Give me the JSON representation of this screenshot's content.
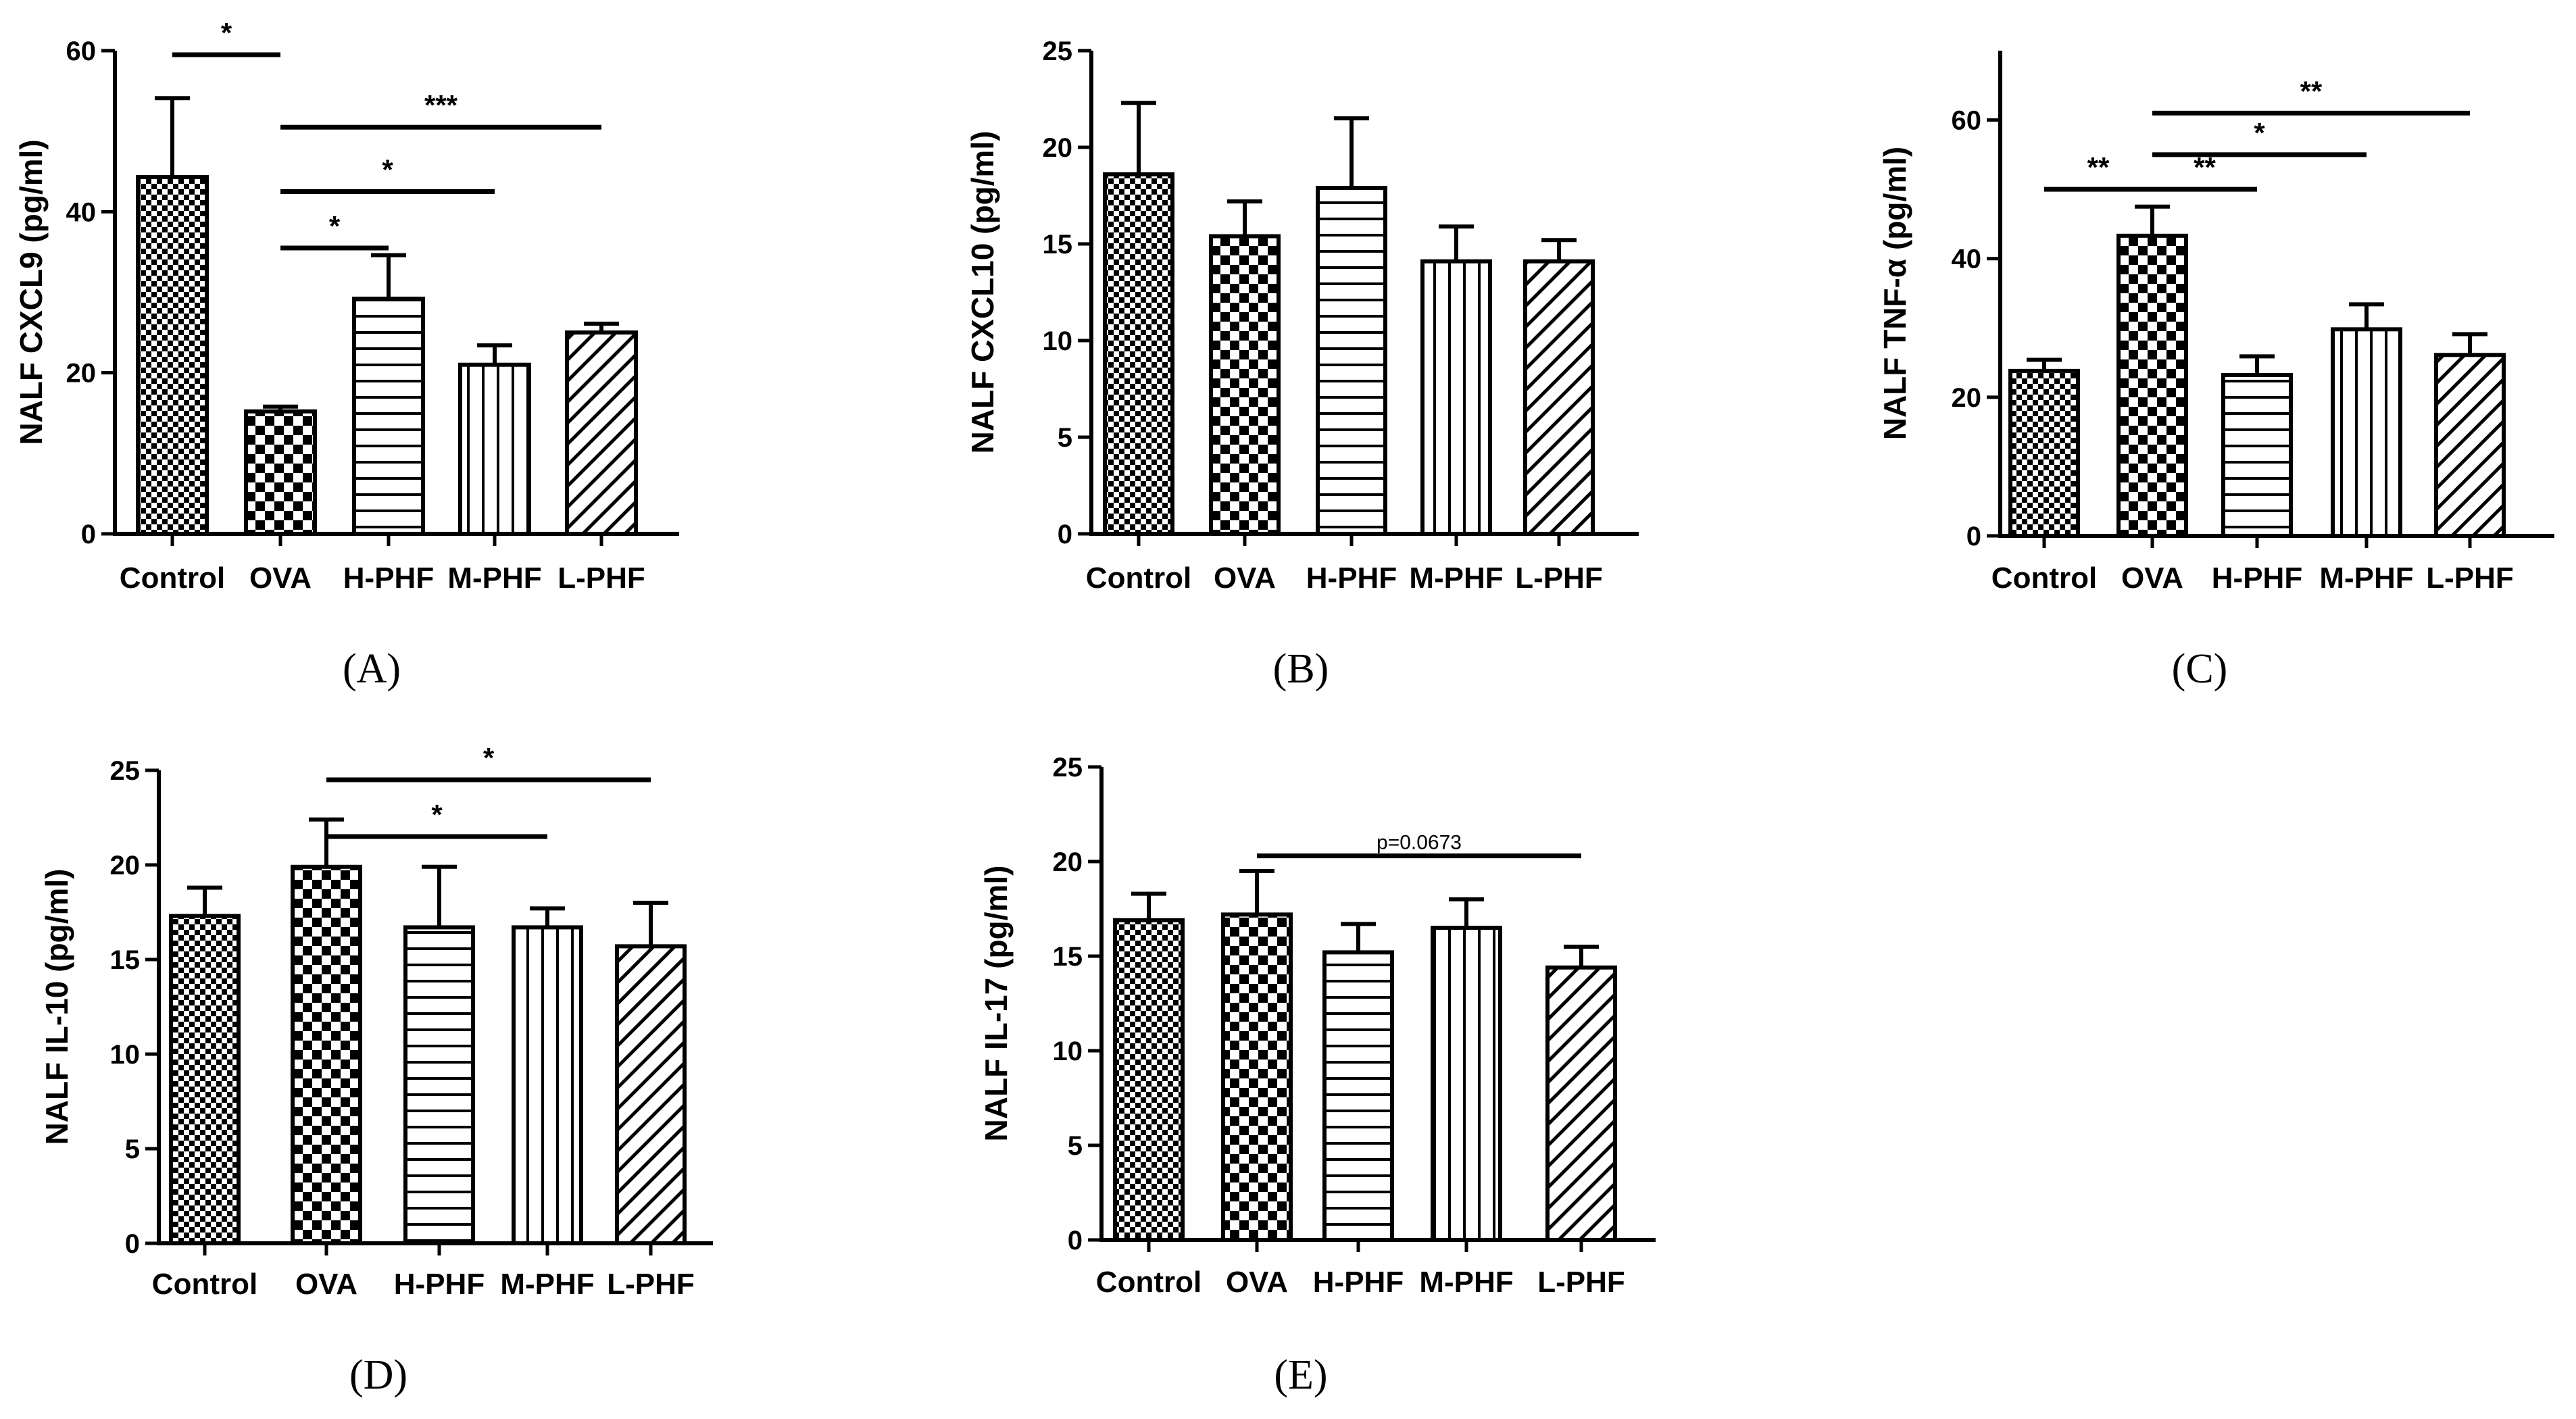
{
  "chart_data": [
    {
      "type": "bar",
      "panel_label": "(A)",
      "ylabel": "NALF CXCL9 (pg/ml)",
      "ylim": [
        0,
        60
      ],
      "yticks": [
        0,
        20,
        40,
        60
      ],
      "categories": [
        "Control",
        "OVA",
        "H-PHF",
        "M-PHF",
        "L-PHF"
      ],
      "values": [
        44.3,
        15.2,
        29.2,
        21.0,
        25.0
      ],
      "errors": [
        9.8,
        0.6,
        5.4,
        2.4,
        1.1
      ],
      "patterns": [
        "fine-check",
        "check",
        "horizontal",
        "vertical",
        "diagonal"
      ],
      "significance": [
        {
          "from": "Control",
          "to": "OVA",
          "label": "*",
          "y": 59.5
        },
        {
          "from": "OVA",
          "to": "L-PHF",
          "label": "***",
          "y": 50.5
        },
        {
          "from": "OVA",
          "to": "M-PHF",
          "label": "*",
          "y": 42.5
        },
        {
          "from": "OVA",
          "to": "H-PHF",
          "label": "*",
          "y": 35.5
        }
      ]
    },
    {
      "type": "bar",
      "panel_label": "(B)",
      "ylabel": "NALF CXCL10 (pg/ml)",
      "ylim": [
        0,
        25
      ],
      "yticks": [
        0,
        5,
        10,
        15,
        20,
        25
      ],
      "categories": [
        "Control",
        "OVA",
        "H-PHF",
        "M-PHF",
        "L-PHF"
      ],
      "values": [
        18.6,
        15.4,
        17.9,
        14.1,
        14.1
      ],
      "errors": [
        3.7,
        1.8,
        3.6,
        1.8,
        1.1
      ],
      "patterns": [
        "fine-check",
        "check",
        "horizontal",
        "vertical",
        "diagonal"
      ],
      "significance": []
    },
    {
      "type": "bar",
      "panel_label": "(C)",
      "ylabel": "NALF TNF-α (pg/ml)",
      "ylim": [
        0,
        70
      ],
      "yticks": [
        0,
        20,
        40,
        60
      ],
      "categories": [
        "Control",
        "OVA",
        "H-PHF",
        "M-PHF",
        "L-PHF"
      ],
      "values": [
        23.8,
        43.3,
        23.2,
        29.8,
        26.1
      ],
      "errors": [
        1.6,
        4.2,
        2.7,
        3.6,
        3.0
      ],
      "patterns": [
        "fine-check",
        "check",
        "horizontal",
        "vertical",
        "diagonal"
      ],
      "significance": [
        {
          "from": "OVA",
          "to": "L-PHF",
          "label": "**",
          "y": 61.0
        },
        {
          "from": "OVA",
          "to": "M-PHF",
          "label": "*",
          "y": 55.0
        },
        {
          "from": "Control",
          "to": "OVA",
          "label": "**",
          "y": 50.0
        },
        {
          "from": "OVA",
          "to": "H-PHF",
          "label": "**",
          "y": 50.0
        }
      ]
    },
    {
      "type": "bar",
      "panel_label": "(D)",
      "ylabel": "NALF IL-10 (pg/ml)",
      "ylim": [
        0,
        25
      ],
      "yticks": [
        0,
        5,
        10,
        15,
        20,
        25
      ],
      "categories": [
        "Control",
        "OVA",
        "H-PHF",
        "M-PHF",
        "L-PHF"
      ],
      "values": [
        17.3,
        19.9,
        16.7,
        16.7,
        15.7
      ],
      "errors": [
        1.5,
        2.5,
        3.2,
        1.0,
        2.3
      ],
      "patterns": [
        "fine-check",
        "check",
        "horizontal",
        "vertical",
        "diagonal"
      ],
      "significance": [
        {
          "from": "OVA",
          "to": "L-PHF",
          "label": "*",
          "y": 24.5
        },
        {
          "from": "OVA",
          "to": "M-PHF",
          "label": "*",
          "y": 21.5
        }
      ]
    },
    {
      "type": "bar",
      "panel_label": "(E)",
      "ylabel": "NALF IL-17 (pg/ml)",
      "ylim": [
        0,
        25
      ],
      "yticks": [
        0,
        5,
        10,
        15,
        20,
        25
      ],
      "categories": [
        "Control",
        "OVA",
        "H-PHF",
        "M-PHF",
        "L-PHF"
      ],
      "values": [
        16.9,
        17.2,
        15.2,
        16.5,
        14.4
      ],
      "errors": [
        1.4,
        2.3,
        1.5,
        1.5,
        1.1
      ],
      "patterns": [
        "fine-check",
        "check",
        "horizontal",
        "vertical",
        "diagonal"
      ],
      "significance": [
        {
          "from": "OVA",
          "to": "L-PHF",
          "label": "p=0.0673",
          "y": 20.3,
          "small": true
        }
      ]
    }
  ]
}
